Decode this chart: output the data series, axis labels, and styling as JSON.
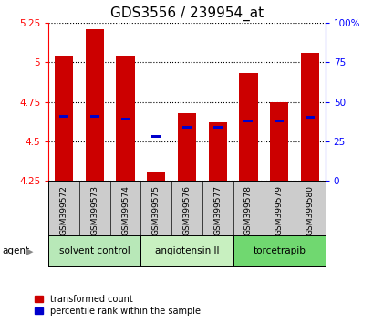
{
  "title": "GDS3556 / 239954_at",
  "samples": [
    "GSM399572",
    "GSM399573",
    "GSM399574",
    "GSM399575",
    "GSM399576",
    "GSM399577",
    "GSM399578",
    "GSM399579",
    "GSM399580"
  ],
  "red_values": [
    5.04,
    5.21,
    5.04,
    4.31,
    4.68,
    4.62,
    4.93,
    4.75,
    5.06
  ],
  "blue_values": [
    4.66,
    4.66,
    4.64,
    4.53,
    4.59,
    4.59,
    4.63,
    4.63,
    4.65
  ],
  "ymin": 4.25,
  "ymax": 5.25,
  "y_ticks": [
    4.25,
    4.5,
    4.75,
    5.0,
    5.25
  ],
  "y2_ticks": [
    0,
    25,
    50,
    75,
    100
  ],
  "groups": [
    {
      "label": "solvent control",
      "start": 0,
      "end": 3,
      "color": "#b8e8b8"
    },
    {
      "label": "angiotensin II",
      "start": 3,
      "end": 6,
      "color": "#c8f0c0"
    },
    {
      "label": "torcetrapib",
      "start": 6,
      "end": 9,
      "color": "#70d870"
    }
  ],
  "bar_width": 0.6,
  "red_color": "#cc0000",
  "blue_color": "#0000cc",
  "bg_color": "#ffffff",
  "legend_red": "transformed count",
  "legend_blue": "percentile rank within the sample",
  "title_fontsize": 11,
  "tick_fontsize": 7.5,
  "label_fontsize": 6.5
}
